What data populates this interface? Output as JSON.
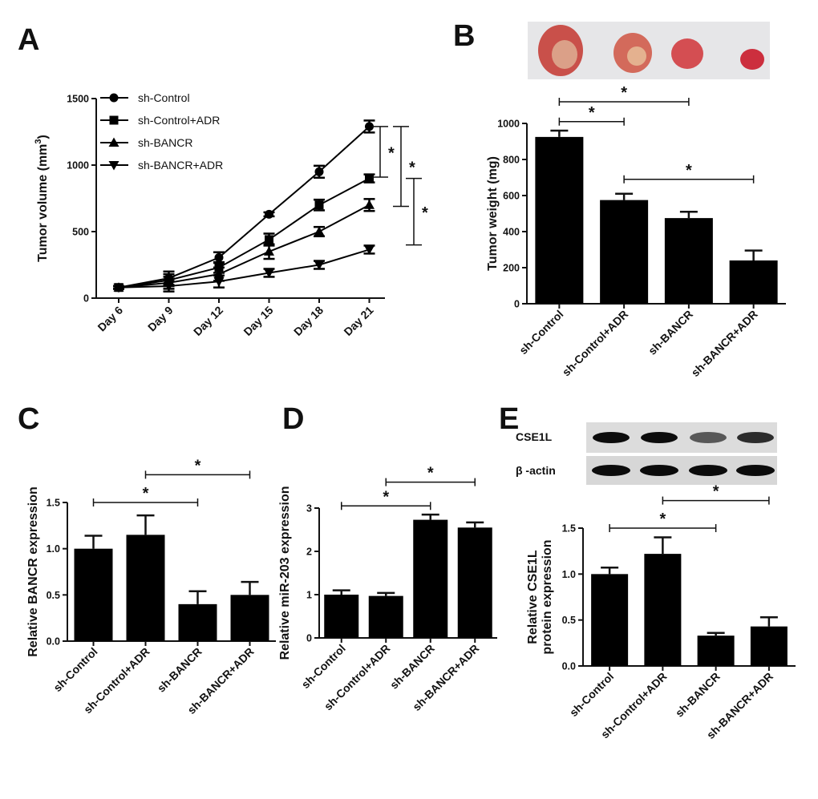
{
  "panels": {
    "A": {
      "letter": "A"
    },
    "B": {
      "letter": "B"
    },
    "C": {
      "letter": "C"
    },
    "D": {
      "letter": "D"
    },
    "E": {
      "letter": "E"
    }
  },
  "significance_mark": "*",
  "blot": {
    "band_labels": [
      "CSE1L",
      "β -actin"
    ],
    "band_intensity": {
      "CSE1L": [
        0.95,
        0.95,
        0.6,
        0.8
      ],
      "beta_actin": [
        0.95,
        0.95,
        0.95,
        0.95
      ]
    }
  },
  "chart_data": [
    {
      "id": "A",
      "type": "line",
      "x": [
        "Day 6",
        "Day 9",
        "Day 12",
        "Day 15",
        "Day 18",
        "Day 21"
      ],
      "ylabel_main": "Tumor volume (mm",
      "ylabel_sup": "3",
      "ylabel_end": ")",
      "xlabel": "",
      "ylim": [
        0,
        1500
      ],
      "yticks": [
        "0",
        "500",
        "1000",
        "1500"
      ],
      "legend_position": "top-left",
      "series": [
        {
          "name": "sh-Control",
          "marker": "circle",
          "values": [
            80,
            150,
            305,
            630,
            950,
            1290
          ],
          "errors": [
            10,
            50,
            40,
            15,
            45,
            45
          ]
        },
        {
          "name": "sh-Control+ADR",
          "marker": "square",
          "values": [
            80,
            135,
            230,
            440,
            700,
            900
          ],
          "errors": [
            10,
            45,
            40,
            45,
            40,
            30
          ]
        },
        {
          "name": "sh-BANCR",
          "marker": "triangle-up",
          "values": [
            80,
            115,
            180,
            350,
            500,
            700
          ],
          "errors": [
            10,
            45,
            50,
            55,
            35,
            45
          ]
        },
        {
          "name": "sh-BANCR+ADR",
          "marker": "triangle-down",
          "values": [
            80,
            90,
            125,
            190,
            250,
            365
          ],
          "errors": [
            10,
            40,
            45,
            30,
            30,
            30
          ]
        }
      ],
      "significance": [
        {
          "from": 1290,
          "to": 910,
          "label": "*"
        },
        {
          "from": 1290,
          "to": 690,
          "label": "*"
        },
        {
          "from": 900,
          "to": 400,
          "label": "*"
        }
      ]
    },
    {
      "id": "B",
      "type": "bar",
      "categories": [
        "sh-Control",
        "sh-Control+ADR",
        "sh-BANCR",
        "sh-BANCR+ADR"
      ],
      "values": [
        925,
        575,
        475,
        240
      ],
      "errors": [
        35,
        35,
        35,
        55
      ],
      "ylabel": "Tumor weight (mg)",
      "xlabel": "",
      "ylim": [
        0,
        1000
      ],
      "yticks": [
        "0",
        "200",
        "400",
        "600",
        "800",
        "1000"
      ],
      "significance": [
        {
          "a": 0,
          "b": 1,
          "y": 1010,
          "label": "*"
        },
        {
          "a": 0,
          "b": 2,
          "y": 1120,
          "label": "*"
        },
        {
          "a": 1,
          "b": 3,
          "y": 690,
          "label": "*"
        }
      ]
    },
    {
      "id": "C",
      "type": "bar",
      "categories": [
        "sh-Control",
        "sh-Control+ADR",
        "sh-BANCR",
        "sh-BANCR+ADR"
      ],
      "values": [
        1.0,
        1.15,
        0.4,
        0.5
      ],
      "errors": [
        0.14,
        0.21,
        0.14,
        0.14
      ],
      "ylabel": "Relative  BANCR expression",
      "xlabel": "",
      "ylim": [
        0,
        1.5
      ],
      "yticks": [
        "0.0",
        "0.5",
        "1.0",
        "1.5"
      ],
      "significance": [
        {
          "a": 0,
          "b": 2,
          "y": 1.5,
          "label": "*"
        },
        {
          "a": 1,
          "b": 3,
          "y": 1.8,
          "label": "*"
        }
      ]
    },
    {
      "id": "D",
      "type": "bar",
      "categories": [
        "sh-Control",
        "sh-Control+ADR",
        "sh-BANCR",
        "sh-BANCR+ADR"
      ],
      "values": [
        1.0,
        0.97,
        2.73,
        2.55
      ],
      "errors": [
        0.1,
        0.07,
        0.12,
        0.12
      ],
      "ylabel": "Relative miR-203 expression",
      "xlabel": "",
      "ylim": [
        0,
        3
      ],
      "yticks": [
        "0",
        "1",
        "2",
        "3"
      ],
      "significance": [
        {
          "a": 0,
          "b": 2,
          "y": 3.05,
          "label": "*"
        },
        {
          "a": 1,
          "b": 3,
          "y": 3.6,
          "label": "*"
        }
      ]
    },
    {
      "id": "E",
      "type": "bar",
      "categories": [
        "sh-Control",
        "sh-Control+ADR",
        "sh-BANCR",
        "sh-BANCR+ADR"
      ],
      "values": [
        1.0,
        1.22,
        0.33,
        0.43
      ],
      "errors": [
        0.07,
        0.18,
        0.03,
        0.1
      ],
      "ylabel_lines": [
        "Relative CSE1L",
        "protein expression"
      ],
      "xlabel": "",
      "ylim": [
        0,
        1.5
      ],
      "yticks": [
        "0.0",
        "0.5",
        "1.0",
        "1.5"
      ],
      "significance": [
        {
          "a": 0,
          "b": 2,
          "y": 1.5,
          "label": "*"
        },
        {
          "a": 1,
          "b": 3,
          "y": 1.8,
          "label": "*"
        }
      ]
    }
  ]
}
